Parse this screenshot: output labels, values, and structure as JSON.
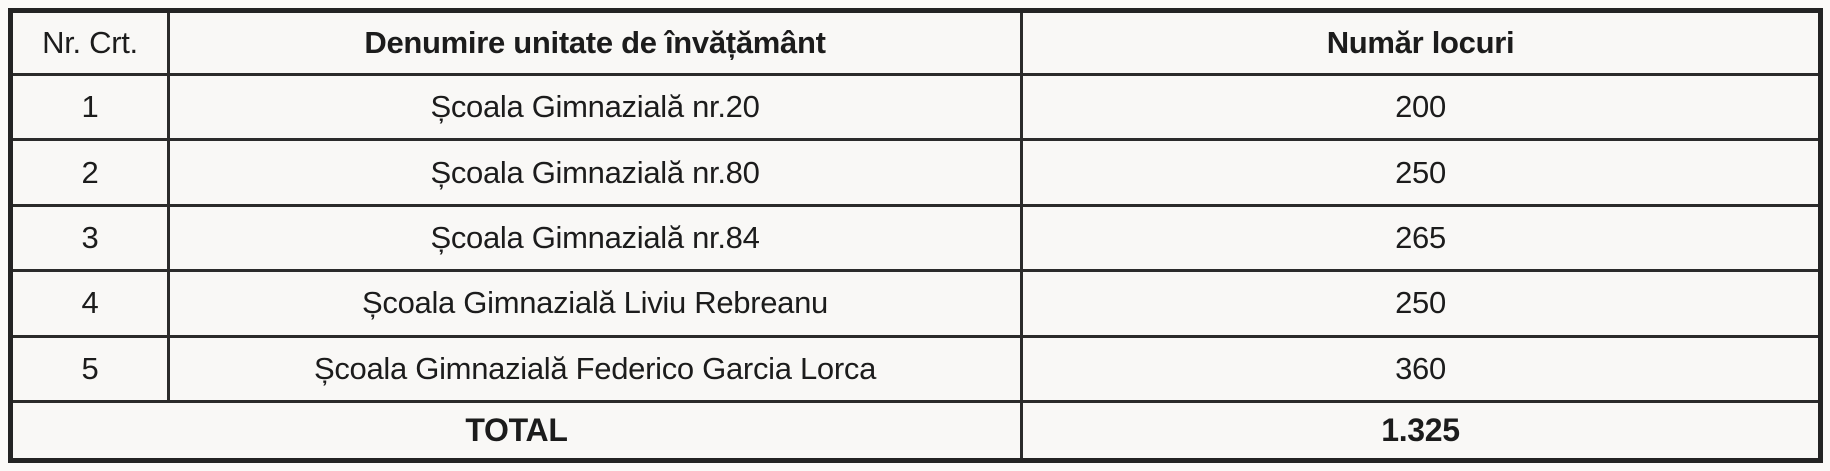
{
  "table": {
    "columns": {
      "nr": "Nr. Crt.",
      "name": "Denumire unitate de învățământ",
      "seats": "Număr locuri"
    },
    "rows": [
      {
        "nr": "1",
        "name": "Școala Gimnazială nr.20",
        "seats": "200"
      },
      {
        "nr": "2",
        "name": "Școala Gimnazială nr.80",
        "seats": "250"
      },
      {
        "nr": "3",
        "name": "Școala Gimnazială nr.84",
        "seats": "265"
      },
      {
        "nr": "4",
        "name": "Școala Gimnazială Liviu Rebreanu",
        "seats": "250"
      },
      {
        "nr": "5",
        "name": "Școala Gimnazială Federico Garcia Lorca",
        "seats": "360"
      }
    ],
    "footer": {
      "label": "TOTAL",
      "total": "1.325"
    }
  },
  "colors": {
    "background": "#f9f8f6",
    "border": "#2b2b2b",
    "text": "#1c1c1c"
  }
}
